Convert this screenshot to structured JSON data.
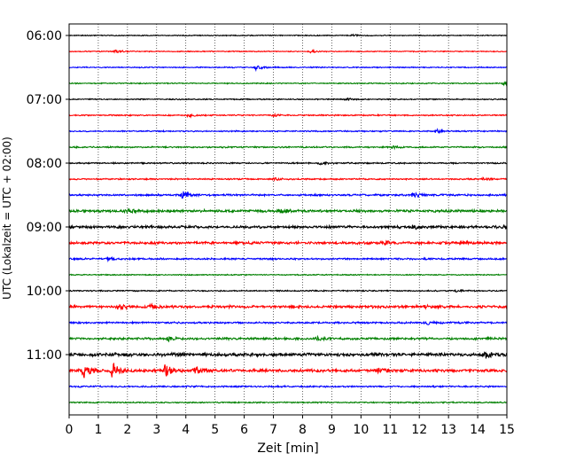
{
  "chart_data": {
    "type": "line",
    "title": "",
    "xlabel": "Zeit  [min]",
    "ylabel": "UTC (Lokalzeit = UTC + 02:00)",
    "xlim": [
      0,
      15
    ],
    "x_ticks": [
      "0",
      "1",
      "2",
      "3",
      "4",
      "5",
      "6",
      "7",
      "8",
      "9",
      "10",
      "11",
      "12",
      "13",
      "14",
      "15"
    ],
    "y_tick_labels": [
      "06:00",
      "07:00",
      "08:00",
      "09:00",
      "10:00",
      "11:00"
    ],
    "grid": {
      "vertical": true,
      "style": "dotted"
    },
    "trace_interval_min": 15,
    "colors": [
      "#000000",
      "#ff0000",
      "#0000ff",
      "#008000"
    ],
    "series": [
      {
        "start": "06:00",
        "color": "#000000",
        "amplitude": 0.6,
        "events": [
          {
            "t": 9.7,
            "amp": 1.2
          }
        ]
      },
      {
        "start": "06:15",
        "color": "#ff0000",
        "amplitude": 0.6,
        "events": [
          {
            "t": 1.6,
            "amp": 1.6
          },
          {
            "t": 8.3,
            "amp": 1.8
          }
        ]
      },
      {
        "start": "06:30",
        "color": "#0000ff",
        "amplitude": 0.7,
        "events": [
          {
            "t": 6.4,
            "amp": 3.0
          }
        ]
      },
      {
        "start": "06:45",
        "color": "#008000",
        "amplitude": 0.7,
        "events": [
          {
            "t": 14.9,
            "amp": 1.5
          }
        ]
      },
      {
        "start": "07:00",
        "color": "#000000",
        "amplitude": 0.7,
        "events": [
          {
            "t": 9.5,
            "amp": 1.5
          }
        ]
      },
      {
        "start": "07:15",
        "color": "#ff0000",
        "amplitude": 0.8,
        "events": [
          {
            "t": 4.1,
            "amp": 1.8
          },
          {
            "t": 7.0,
            "amp": 1.2
          }
        ]
      },
      {
        "start": "07:30",
        "color": "#0000ff",
        "amplitude": 0.8,
        "events": [
          {
            "t": 12.6,
            "amp": 2.2
          }
        ]
      },
      {
        "start": "07:45",
        "color": "#008000",
        "amplitude": 0.9,
        "events": [
          {
            "t": 11.1,
            "amp": 1.2
          }
        ]
      },
      {
        "start": "08:00",
        "color": "#000000",
        "amplitude": 0.9,
        "events": [
          {
            "t": 8.6,
            "amp": 1.3
          }
        ]
      },
      {
        "start": "08:15",
        "color": "#ff0000",
        "amplitude": 0.9,
        "events": [
          {
            "t": 7.0,
            "amp": 1.4
          },
          {
            "t": 14.2,
            "amp": 1.6
          }
        ]
      },
      {
        "start": "08:30",
        "color": "#0000ff",
        "amplitude": 1.2,
        "events": [
          {
            "t": 3.9,
            "amp": 4.0
          },
          {
            "t": 11.8,
            "amp": 3.0
          }
        ]
      },
      {
        "start": "08:45",
        "color": "#008000",
        "amplitude": 1.6,
        "events": [
          {
            "t": 1.9,
            "amp": 2.8
          },
          {
            "t": 7.2,
            "amp": 2.4
          }
        ]
      },
      {
        "start": "09:00",
        "color": "#000000",
        "amplitude": 1.6,
        "events": [
          {
            "t": 11.8,
            "amp": 2.0
          },
          {
            "t": 14.9,
            "amp": 2.0
          }
        ]
      },
      {
        "start": "09:15",
        "color": "#ff0000",
        "amplitude": 1.6,
        "events": [
          {
            "t": 10.8,
            "amp": 2.2
          },
          {
            "t": 13.6,
            "amp": 1.8
          }
        ]
      },
      {
        "start": "09:30",
        "color": "#0000ff",
        "amplitude": 1.1,
        "events": [
          {
            "t": 1.3,
            "amp": 1.8
          }
        ]
      },
      {
        "start": "09:45",
        "color": "#008000",
        "amplitude": 0.7,
        "events": []
      },
      {
        "start": "10:00",
        "color": "#000000",
        "amplitude": 0.8,
        "events": [
          {
            "t": 13.3,
            "amp": 1.2
          }
        ]
      },
      {
        "start": "10:15",
        "color": "#ff0000",
        "amplitude": 1.6,
        "events": [
          {
            "t": 1.7,
            "amp": 2.8
          },
          {
            "t": 2.8,
            "amp": 2.0
          },
          {
            "t": 12.2,
            "amp": 2.2
          }
        ]
      },
      {
        "start": "10:30",
        "color": "#0000ff",
        "amplitude": 1.1,
        "events": [
          {
            "t": 12.3,
            "amp": 1.6
          }
        ]
      },
      {
        "start": "10:45",
        "color": "#008000",
        "amplitude": 1.4,
        "events": [
          {
            "t": 3.4,
            "amp": 2.2
          },
          {
            "t": 8.5,
            "amp": 1.8
          }
        ]
      },
      {
        "start": "11:00",
        "color": "#000000",
        "amplitude": 2.0,
        "events": [
          {
            "t": 3.6,
            "amp": 3.0
          },
          {
            "t": 14.3,
            "amp": 3.2
          }
        ]
      },
      {
        "start": "11:15",
        "color": "#ff0000",
        "amplitude": 1.8,
        "events": [
          {
            "t": 0.5,
            "amp": 10.0
          },
          {
            "t": 1.5,
            "amp": 9.0
          },
          {
            "t": 3.3,
            "amp": 7.0
          },
          {
            "t": 4.3,
            "amp": 4.5
          },
          {
            "t": 10.6,
            "amp": 2.0
          }
        ]
      },
      {
        "start": "11:30",
        "color": "#0000ff",
        "amplitude": 1.0,
        "events": []
      },
      {
        "start": "11:45",
        "color": "#008000",
        "amplitude": 0.8,
        "events": []
      }
    ]
  }
}
